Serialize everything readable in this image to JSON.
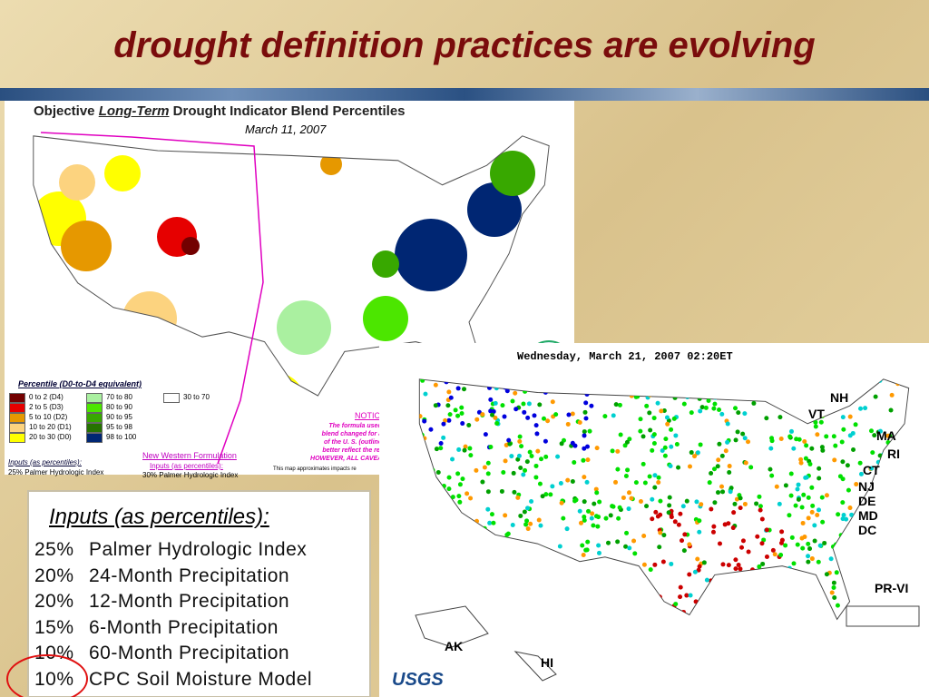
{
  "title": "drought definition practices are evolving",
  "map1": {
    "title_prefix": "Objective",
    "title_emph": "Long-Term",
    "title_suffix": "Drought Indicator Blend Percentiles",
    "date": "March 11, 2007",
    "legend": {
      "heading": "Percentile  (D0-to-D4 equivalent)",
      "items": [
        {
          "label": "0 to 2  (D4)",
          "color": "#730000"
        },
        {
          "label": "2 to 5  (D3)",
          "color": "#e60000"
        },
        {
          "label": "5 to 10  (D2)",
          "color": "#e69800"
        },
        {
          "label": "10 to 20  (D1)",
          "color": "#fcd37f"
        },
        {
          "label": "20 to 30  (D0)",
          "color": "#ffff00"
        },
        {
          "label": "70 to 80",
          "color": "#aaf0a0"
        },
        {
          "label": "80 to 90",
          "color": "#4ce600"
        },
        {
          "label": "90 to 95",
          "color": "#38a800"
        },
        {
          "label": "95 to 98",
          "color": "#267300"
        },
        {
          "label": "98 to 100",
          "color": "#002673"
        },
        {
          "label": "30 to 70",
          "color": "#ffffff"
        }
      ]
    },
    "inputs_label": "Inputs (as percentiles):",
    "inputs_first": "25%  Palmer Hydrologic Index",
    "western": {
      "title": "New Western Formulation",
      "inputs": "Inputs (as percentiles):",
      "first": "30% Palmer Hydrologic Index"
    },
    "notice": {
      "heading": "NOTICE",
      "lines": [
        "The formula used t",
        "blend changed for a l",
        "of the U. S. (outlined",
        "better reflect the regi",
        "HOWEVER, ALL CAVEAT"
      ]
    },
    "footnote": "This map approximates impacts re"
  },
  "inputs_box": {
    "heading": "Inputs (as percentiles):",
    "rows": [
      {
        "pct": "25%",
        "name": "Palmer Hydrologic Index"
      },
      {
        "pct": "20%",
        "name": "24-Month Precipitation"
      },
      {
        "pct": "20%",
        "name": "12-Month Precipitation"
      },
      {
        "pct": "15%",
        "name": "6-Month Precipitation"
      },
      {
        "pct": "10%",
        "name": "60-Month Precipitation"
      },
      {
        "pct": "10%",
        "name": "CPC Soil Moisture Model"
      }
    ]
  },
  "map2": {
    "timestamp": "Wednesday, March 21, 2007 02:20ET",
    "labels": [
      "NH",
      "VT",
      "MA",
      "RI",
      "CT",
      "NJ",
      "DE",
      "MD",
      "DC",
      "PR-VI",
      "AK",
      "HI"
    ],
    "logo": "USGS"
  }
}
